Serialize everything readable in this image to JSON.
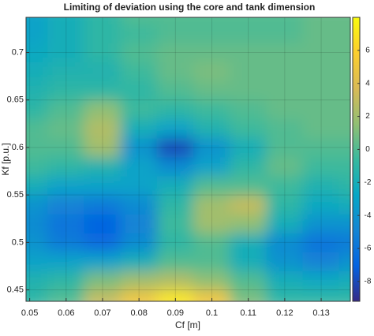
{
  "chart_data": {
    "type": "heatmap",
    "title": "Limiting of deviation using the core and tank dimension",
    "xlabel": "Cf [m]",
    "ylabel": "Kf [p.u.]",
    "x": [
      0.05,
      0.06,
      0.07,
      0.08,
      0.09,
      0.1,
      0.11,
      0.12,
      0.13,
      0.14
    ],
    "y": [
      0.44,
      0.46,
      0.48,
      0.5,
      0.52,
      0.54,
      0.56,
      0.58,
      0.6,
      0.62,
      0.64,
      0.66,
      0.68,
      0.7,
      0.72,
      0.74
    ],
    "z": [
      [
        -1,
        0,
        3,
        5,
        7,
        5,
        1,
        -1,
        -1,
        -1
      ],
      [
        -1.5,
        -1,
        1,
        2,
        2.5,
        1.5,
        0,
        -2,
        -2.5,
        -2
      ],
      [
        -3,
        -3,
        -3,
        -2,
        0,
        0,
        -2,
        -4,
        -5,
        -4
      ],
      [
        -4,
        -5.5,
        -6.5,
        -4.5,
        -1,
        0,
        -2,
        -4.5,
        -6,
        -5.5
      ],
      [
        -4.5,
        -6,
        -7,
        -5,
        -0.5,
        2,
        1.5,
        -2,
        -4,
        -4
      ],
      [
        -4,
        -5,
        -5.5,
        -4.5,
        -1,
        2,
        3,
        -1,
        -2.5,
        -2
      ],
      [
        -2,
        -3,
        -3,
        -3,
        -2,
        0,
        0,
        -0.5,
        -1.5,
        -1
      ],
      [
        -0.5,
        -1,
        -1.5,
        -3,
        -4.5,
        -3,
        -1,
        0.5,
        -0.5,
        -0.5
      ],
      [
        0,
        0,
        2,
        -4,
        -8,
        -4,
        -2,
        0,
        0,
        0
      ],
      [
        0,
        0.5,
        2.5,
        -2,
        -3,
        -1.5,
        -0.5,
        0,
        0.5,
        0.5
      ],
      [
        -1,
        0,
        1.5,
        -0.5,
        -1,
        -0.5,
        0,
        0.5,
        0.5,
        0.5
      ],
      [
        -1.5,
        -1,
        -1,
        -1,
        0,
        0.5,
        0.5,
        0.5,
        0.5,
        0.5
      ],
      [
        -2,
        -1.5,
        -1.5,
        -0.5,
        0.5,
        1,
        0.5,
        0.5,
        0.5,
        0.5
      ],
      [
        -2.5,
        -2,
        -1,
        0,
        0.5,
        0.5,
        0.5,
        0.5,
        0.5,
        0.5
      ],
      [
        -3,
        -2,
        -1,
        -0.5,
        0,
        0,
        0,
        0,
        0.5,
        0.5
      ],
      [
        -3,
        -2,
        -1,
        0,
        0,
        0,
        0,
        0,
        0.5,
        0.5
      ]
    ],
    "xlim": [
      0.049,
      0.138
    ],
    "ylim": [
      0.438,
      0.737
    ],
    "xticks": [
      0.05,
      0.06,
      0.07,
      0.08,
      0.09,
      0.1,
      0.11,
      0.12,
      0.13
    ],
    "yticks": [
      0.45,
      0.5,
      0.55,
      0.6,
      0.65,
      0.7
    ],
    "clim": [
      -9.2,
      8
    ],
    "cticks": [
      -8,
      -6,
      -4,
      -2,
      0,
      2,
      4,
      6
    ],
    "colormap": [
      "#352a87",
      "#0363e1",
      "#1485d4",
      "#06a7c6",
      "#38b99e",
      "#92bf73",
      "#d9ba56",
      "#fcce2e",
      "#f9fb0e"
    ],
    "grid": true
  }
}
